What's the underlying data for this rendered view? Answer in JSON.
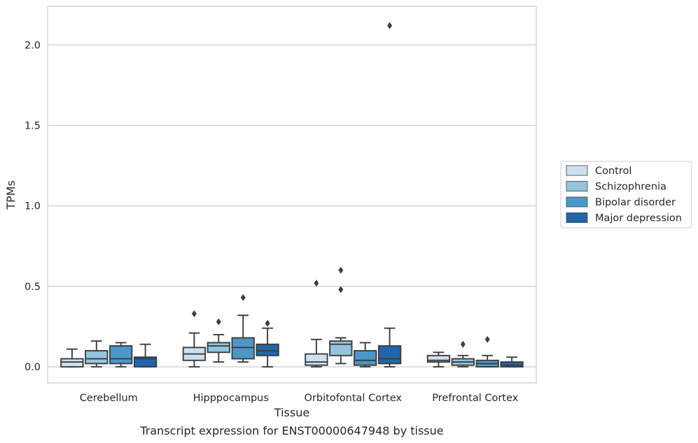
{
  "chart_data": {
    "type": "box",
    "title": "",
    "caption": "Transcript expression for ENST00000647948 by tissue",
    "xlabel": "Tissue",
    "ylabel": "TPMs",
    "ylim": [
      -0.1,
      2.24
    ],
    "yticks": [
      0.0,
      0.5,
      1.0,
      1.5,
      2.0
    ],
    "ytick_labels": [
      "0.0",
      "0.5",
      "1.0",
      "1.5",
      "2.0"
    ],
    "grid": "horizontal",
    "legend_position": "right",
    "categories": [
      "Cerebellum",
      "Hipppocampus",
      "Orbitofontal Cortex",
      "Prefrontal Cortex"
    ],
    "series": [
      {
        "name": "Control",
        "color": "#cde0f1",
        "boxes": [
          {
            "whisker_low": 0.0,
            "q1": 0.0,
            "median": 0.03,
            "q3": 0.05,
            "whisker_high": 0.11,
            "outliers": []
          },
          {
            "whisker_low": 0.0,
            "q1": 0.04,
            "median": 0.08,
            "q3": 0.12,
            "whisker_high": 0.21,
            "outliers": [
              0.33
            ]
          },
          {
            "whisker_low": 0.0,
            "q1": 0.01,
            "median": 0.03,
            "q3": 0.08,
            "whisker_high": 0.17,
            "outliers": [
              0.52
            ]
          },
          {
            "whisker_low": 0.0,
            "q1": 0.03,
            "median": 0.04,
            "q3": 0.07,
            "whisker_high": 0.09,
            "outliers": []
          }
        ]
      },
      {
        "name": "Schizophrenia",
        "color": "#93c4de",
        "boxes": [
          {
            "whisker_low": 0.0,
            "q1": 0.02,
            "median": 0.05,
            "q3": 0.1,
            "whisker_high": 0.16,
            "outliers": []
          },
          {
            "whisker_low": 0.03,
            "q1": 0.09,
            "median": 0.13,
            "q3": 0.15,
            "whisker_high": 0.2,
            "outliers": [
              0.28
            ]
          },
          {
            "whisker_low": 0.02,
            "q1": 0.07,
            "median": 0.14,
            "q3": 0.16,
            "whisker_high": 0.18,
            "outliers": [
              0.6,
              0.48
            ]
          },
          {
            "whisker_low": 0.0,
            "q1": 0.01,
            "median": 0.03,
            "q3": 0.05,
            "whisker_high": 0.07,
            "outliers": [
              0.14
            ]
          }
        ]
      },
      {
        "name": "Bipolar disorder",
        "color": "#4a98c9",
        "boxes": [
          {
            "whisker_low": 0.0,
            "q1": 0.02,
            "median": 0.05,
            "q3": 0.13,
            "whisker_high": 0.15,
            "outliers": []
          },
          {
            "whisker_low": 0.03,
            "q1": 0.05,
            "median": 0.12,
            "q3": 0.18,
            "whisker_high": 0.32,
            "outliers": [
              0.43
            ]
          },
          {
            "whisker_low": 0.0,
            "q1": 0.01,
            "median": 0.04,
            "q3": 0.1,
            "whisker_high": 0.15,
            "outliers": []
          },
          {
            "whisker_low": 0.0,
            "q1": 0.0,
            "median": 0.02,
            "q3": 0.04,
            "whisker_high": 0.07,
            "outliers": [
              0.17
            ]
          }
        ]
      },
      {
        "name": "Major depression",
        "color": "#2165ab",
        "boxes": [
          {
            "whisker_low": 0.0,
            "q1": 0.0,
            "median": 0.05,
            "q3": 0.06,
            "whisker_high": 0.14,
            "outliers": []
          },
          {
            "whisker_low": 0.0,
            "q1": 0.07,
            "median": 0.1,
            "q3": 0.14,
            "whisker_high": 0.24,
            "outliers": [
              0.27
            ]
          },
          {
            "whisker_low": 0.0,
            "q1": 0.02,
            "median": 0.05,
            "q3": 0.13,
            "whisker_high": 0.24,
            "outliers": [
              2.12
            ]
          },
          {
            "whisker_low": 0.0,
            "q1": 0.0,
            "median": 0.01,
            "q3": 0.03,
            "whisker_high": 0.06,
            "outliers": []
          }
        ]
      }
    ]
  }
}
